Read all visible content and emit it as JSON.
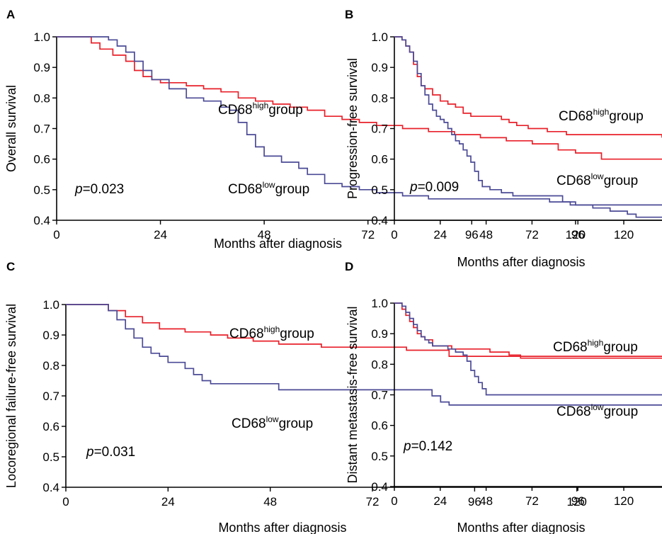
{
  "figure": {
    "colors": {
      "high": "#e8202a",
      "low": "#4b4a96",
      "axis": "#000000"
    }
  },
  "chart_data": [
    {
      "type": "line",
      "panel": "A",
      "ylabel": "Overall survival",
      "xlabel": "Months after diagnosis",
      "xlim": [
        0,
        140
      ],
      "ylim": [
        0.4,
        1.0
      ],
      "xticks": [
        "0",
        "24",
        "48",
        "72",
        "96",
        "120"
      ],
      "yticks": [
        "0.4",
        "0.5",
        "0.6",
        "0.7",
        "0.8",
        "0.9",
        "1.0"
      ],
      "p_value": "=0.023",
      "series": [
        {
          "name": "CD68",
          "sup": "high",
          "suffix": "group",
          "color": "#e8202a",
          "x": [
            0,
            8,
            10,
            13,
            16,
            18,
            20,
            22,
            24,
            30,
            34,
            38,
            42,
            46,
            50,
            54,
            58,
            62,
            66,
            70,
            74,
            80,
            86,
            92,
            98,
            104,
            110,
            116,
            120,
            126,
            140
          ],
          "y": [
            1.0,
            0.98,
            0.96,
            0.94,
            0.92,
            0.89,
            0.87,
            0.86,
            0.85,
            0.84,
            0.83,
            0.82,
            0.8,
            0.79,
            0.78,
            0.77,
            0.76,
            0.74,
            0.73,
            0.72,
            0.71,
            0.7,
            0.69,
            0.68,
            0.67,
            0.66,
            0.65,
            0.63,
            0.62,
            0.6,
            0.6
          ]
        },
        {
          "name": "CD68",
          "sup": "low",
          "suffix": "group",
          "color": "#4b4a96",
          "x": [
            0,
            10,
            12,
            14,
            16,
            18,
            20,
            22,
            26,
            30,
            34,
            38,
            40,
            42,
            44,
            46,
            48,
            52,
            56,
            58,
            62,
            66,
            70,
            74,
            80,
            86,
            92,
            104,
            114,
            120,
            124,
            128,
            132,
            134,
            140
          ],
          "y": [
            1.0,
            1.0,
            0.99,
            0.97,
            0.95,
            0.92,
            0.89,
            0.86,
            0.83,
            0.8,
            0.79,
            0.77,
            0.76,
            0.72,
            0.68,
            0.64,
            0.61,
            0.59,
            0.57,
            0.55,
            0.52,
            0.51,
            0.5,
            0.49,
            0.48,
            0.47,
            0.47,
            0.47,
            0.46,
            0.45,
            0.44,
            0.43,
            0.42,
            0.41,
            0.41
          ]
        }
      ]
    },
    {
      "type": "line",
      "panel": "B",
      "ylabel": "Progression-free survival",
      "xlabel": "Months after diagnosis",
      "xlim": [
        0,
        140
      ],
      "ylim": [
        0.4,
        1.0
      ],
      "xticks": [
        "0",
        "24",
        "48",
        "72",
        "96",
        "120"
      ],
      "yticks": [
        "0.4",
        "0.5",
        "0.6",
        "0.7",
        "0.8",
        "0.9",
        "1.0"
      ],
      "p_value": "=0.009",
      "series": [
        {
          "name": "CD68",
          "sup": "high",
          "suffix": "group",
          "color": "#e8202a",
          "x": [
            0,
            4,
            6,
            8,
            10,
            12,
            14,
            16,
            20,
            24,
            28,
            32,
            36,
            40,
            48,
            56,
            60,
            64,
            70,
            80,
            90,
            140
          ],
          "y": [
            1.0,
            0.99,
            0.97,
            0.95,
            0.91,
            0.87,
            0.84,
            0.83,
            0.81,
            0.79,
            0.78,
            0.77,
            0.75,
            0.74,
            0.74,
            0.73,
            0.72,
            0.71,
            0.7,
            0.69,
            0.68,
            0.67
          ]
        },
        {
          "name": "CD68",
          "sup": "low",
          "suffix": "group",
          "color": "#4b4a96",
          "x": [
            0,
            4,
            6,
            8,
            10,
            12,
            14,
            16,
            18,
            20,
            22,
            24,
            26,
            28,
            30,
            32,
            34,
            36,
            38,
            40,
            42,
            44,
            46,
            50,
            56,
            62,
            70,
            80,
            88,
            92,
            140
          ],
          "y": [
            1.0,
            0.99,
            0.97,
            0.95,
            0.92,
            0.88,
            0.84,
            0.81,
            0.78,
            0.76,
            0.74,
            0.73,
            0.72,
            0.7,
            0.68,
            0.66,
            0.65,
            0.63,
            0.61,
            0.59,
            0.56,
            0.53,
            0.51,
            0.5,
            0.49,
            0.48,
            0.48,
            0.48,
            0.46,
            0.45,
            0.45
          ]
        }
      ]
    },
    {
      "type": "line",
      "panel": "C",
      "ylabel": "Locoregional failure-free survival",
      "xlabel": "Months after diagnosis",
      "xlim": [
        0,
        140
      ],
      "ylim": [
        0.4,
        1.0
      ],
      "xticks": [
        "0",
        "24",
        "48",
        "72",
        "96",
        "120"
      ],
      "yticks": [
        "0.4",
        "0.5",
        "0.6",
        "0.7",
        "0.8",
        "0.9",
        "1.0"
      ],
      "p_value": "=0.031",
      "series": [
        {
          "name": "CD68",
          "sup": "high",
          "suffix": "group",
          "color": "#e8202a",
          "x": [
            0,
            10,
            14,
            18,
            22,
            28,
            34,
            38,
            44,
            50,
            60,
            70,
            80,
            90,
            140
          ],
          "y": [
            1.0,
            0.98,
            0.96,
            0.94,
            0.92,
            0.91,
            0.9,
            0.89,
            0.88,
            0.87,
            0.86,
            0.86,
            0.85,
            0.83,
            0.83
          ]
        },
        {
          "name": "CD68",
          "sup": "low",
          "suffix": "group",
          "color": "#4b4a96",
          "x": [
            0,
            10,
            12,
            14,
            16,
            18,
            20,
            22,
            24,
            28,
            30,
            32,
            34,
            36,
            40,
            46,
            50,
            54,
            62,
            70,
            80,
            86,
            88,
            90,
            140
          ],
          "y": [
            1.0,
            0.98,
            0.95,
            0.92,
            0.89,
            0.86,
            0.84,
            0.83,
            0.81,
            0.79,
            0.77,
            0.75,
            0.74,
            0.74,
            0.74,
            0.74,
            0.72,
            0.72,
            0.72,
            0.72,
            0.72,
            0.7,
            0.68,
            0.67,
            0.67
          ]
        }
      ]
    },
    {
      "type": "line",
      "panel": "D",
      "ylabel": "Distant metastasis-free survival",
      "xlabel": "Months after diagnosis",
      "xlim": [
        0,
        140
      ],
      "ylim": [
        0.4,
        1.0
      ],
      "xticks": [
        "0",
        "24",
        "48",
        "72",
        "96",
        "120"
      ],
      "yticks": [
        "0.4",
        "0.5",
        "0.6",
        "0.7",
        "0.8",
        "0.9",
        "1.0"
      ],
      "p_value": "=0.142",
      "series": [
        {
          "name": "CD68",
          "sup": "high",
          "suffix": "group",
          "color": "#e8202a",
          "x": [
            0,
            4,
            6,
            8,
            10,
            12,
            14,
            16,
            20,
            24,
            30,
            40,
            50,
            60,
            66,
            140
          ],
          "y": [
            1.0,
            0.98,
            0.96,
            0.94,
            0.92,
            0.9,
            0.89,
            0.88,
            0.86,
            0.86,
            0.85,
            0.85,
            0.84,
            0.83,
            0.82,
            0.82
          ]
        },
        {
          "name": "CD68",
          "sup": "low",
          "suffix": "group",
          "color": "#4b4a96",
          "x": [
            0,
            4,
            6,
            8,
            10,
            12,
            14,
            16,
            18,
            20,
            24,
            28,
            32,
            36,
            38,
            40,
            42,
            44,
            46,
            48,
            140
          ],
          "y": [
            1.0,
            0.99,
            0.97,
            0.95,
            0.93,
            0.91,
            0.89,
            0.88,
            0.87,
            0.86,
            0.86,
            0.85,
            0.84,
            0.83,
            0.81,
            0.78,
            0.76,
            0.74,
            0.72,
            0.7,
            0.7
          ]
        }
      ]
    }
  ]
}
